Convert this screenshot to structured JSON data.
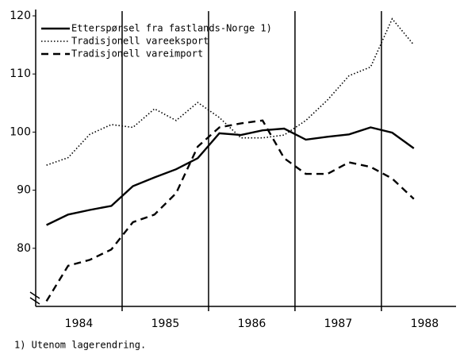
{
  "chart_data": {
    "type": "line",
    "x": [
      1984.125,
      1984.375,
      1984.625,
      1984.875,
      1985.125,
      1985.375,
      1985.625,
      1985.875,
      1986.125,
      1986.375,
      1986.625,
      1986.875,
      1987.125,
      1987.375,
      1987.625,
      1987.875,
      1988.125,
      1988.375
    ],
    "series": [
      {
        "name": "Etterspørsel fra fastlands-Norge 1)",
        "color": "#000000",
        "dash": "solid",
        "values": [
          84.0,
          85.8,
          86.6,
          87.3,
          90.7,
          92.2,
          93.6,
          95.5,
          99.8,
          99.5,
          100.3,
          100.6,
          98.7,
          99.2,
          99.6,
          100.8,
          99.9,
          97.2
        ]
      },
      {
        "name": "Tradisjonell vareeksport",
        "color": "#000000",
        "dash": "dotted",
        "values": [
          94.3,
          95.6,
          99.6,
          101.3,
          100.8,
          104.0,
          102.0,
          105.1,
          102.5,
          99.0,
          99.0,
          99.5,
          102.0,
          105.5,
          109.7,
          111.2,
          119.5,
          115.0
        ]
      },
      {
        "name": "Tradisjonell vareimport",
        "color": "#000000",
        "dash": "dashed",
        "values": [
          70.9,
          77.0,
          78.0,
          79.8,
          84.5,
          85.8,
          89.5,
          97.5,
          100.8,
          101.5,
          102.0,
          95.5,
          92.8,
          92.8,
          94.8,
          94.0,
          92.0,
          88.5
        ]
      }
    ],
    "xlim": [
      1984,
      1988.9
    ],
    "xticks": [
      {
        "value": 1984.5,
        "label": "1984"
      },
      {
        "value": 1985.5,
        "label": "1985"
      },
      {
        "value": 1986.5,
        "label": "1986"
      },
      {
        "value": 1987.5,
        "label": "1987"
      },
      {
        "value": 1988.5,
        "label": "1988"
      }
    ],
    "vlines": [
      1985,
      1986,
      1987,
      1988
    ],
    "ylim": [
      70,
      120
    ],
    "yticks": [
      80,
      90,
      100,
      110,
      120
    ],
    "footnote": "1) Utenom lagerendring."
  }
}
